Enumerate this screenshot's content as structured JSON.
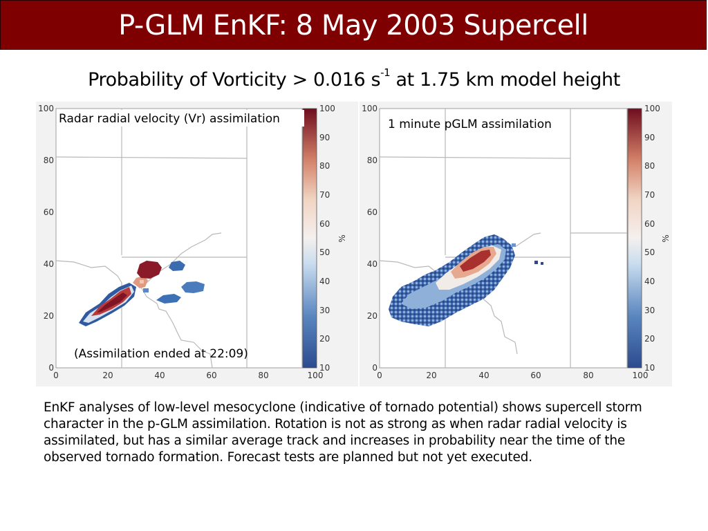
{
  "slide": {
    "title": "P-GLM EnKF: 8 May 2003 Supercell",
    "subtitle_main": "Probability of Vorticity > 0.016 s",
    "subtitle_sup": "-1",
    "subtitle_tail": " at 1.75 km model height",
    "caption": "EnKF analyses of low-level mesocyclone (indicative of tornado potential) shows supercell storm character in the p-GLM assimilation. Rotation is not as strong as when radar radial velocity is assimilated, but has a similar average track and increases in probability near the time of the observed tornado formation.  Forecast tests are planned but not yet executed."
  },
  "panels": [
    {
      "label": "Radar radial velocity (Vr) assimilation",
      "note": "(Assimilation ended at 22:09)"
    },
    {
      "label": "1 minute pGLM assimilation",
      "note": ""
    }
  ],
  "axes": {
    "x_ticks": [
      "0",
      "20",
      "40",
      "60",
      "80",
      "100"
    ],
    "y_ticks": [
      "0",
      "20",
      "40",
      "60",
      "80",
      "100"
    ],
    "colorbar_ticks": [
      "10",
      "20",
      "30",
      "40",
      "50",
      "60",
      "70",
      "80",
      "90",
      "100"
    ],
    "colorbar_label": "%"
  },
  "colors": {
    "title_bg": "#7f0000",
    "high": "#7b1020",
    "mid": "#f4ebe6",
    "low": "#2c4b8f"
  }
}
